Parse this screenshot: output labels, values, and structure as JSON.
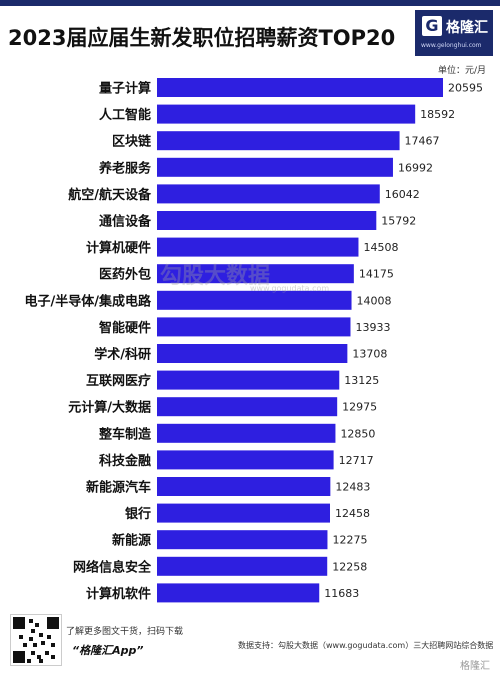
{
  "header": {
    "title": "2023届应届生新发职位招聘薪资TOP20",
    "unit": "单位：元/月"
  },
  "logo": {
    "icon_letter": "G",
    "name": "格隆汇",
    "url": "www.gelonghui.com"
  },
  "watermark": {
    "text": "勾股大数据",
    "url": "www.gogudata.com"
  },
  "footer": {
    "promo_line1": "了解更多图文干货，扫码下载",
    "promo_line2": "“格隆汇App”",
    "source": "数据支持：勾股大数据（www.gogudata.com）三大招聘网站综合数据",
    "mini_logo": "格隆汇"
  },
  "colors": {
    "bar": "#2e1fe0",
    "title_bar": "#1b2a6b"
  },
  "chart_data": {
    "type": "bar",
    "orientation": "horizontal",
    "title": "2023届应届生新发职位招聘薪资TOP20",
    "unit": "元/月",
    "categories": [
      "量子计算",
      "人工智能",
      "区块链",
      "养老服务",
      "航空/航天设备",
      "通信设备",
      "计算机硬件",
      "医药外包",
      "电子/半导体/集成电路",
      "智能硬件",
      "学术/科研",
      "互联网医疗",
      "元计算/大数据",
      "整车制造",
      "科技金融",
      "新能源汽车",
      "银行",
      "新能源",
      "网络信息安全",
      "计算机软件"
    ],
    "values": [
      20595,
      18592,
      17467,
      16992,
      16042,
      15792,
      14508,
      14175,
      14008,
      13933,
      13708,
      13125,
      12975,
      12850,
      12717,
      12483,
      12458,
      12275,
      12258,
      11683
    ],
    "value_labels": [
      "20595",
      "18592",
      "17467",
      "16992",
      "16042",
      "15792",
      "14508",
      "14175",
      "14008",
      "13933",
      "13708",
      "13125",
      "12975",
      "12850",
      "12717",
      "12483",
      "12458",
      "12275",
      "12258",
      "11683"
    ],
    "grid": false,
    "legend": "none"
  }
}
